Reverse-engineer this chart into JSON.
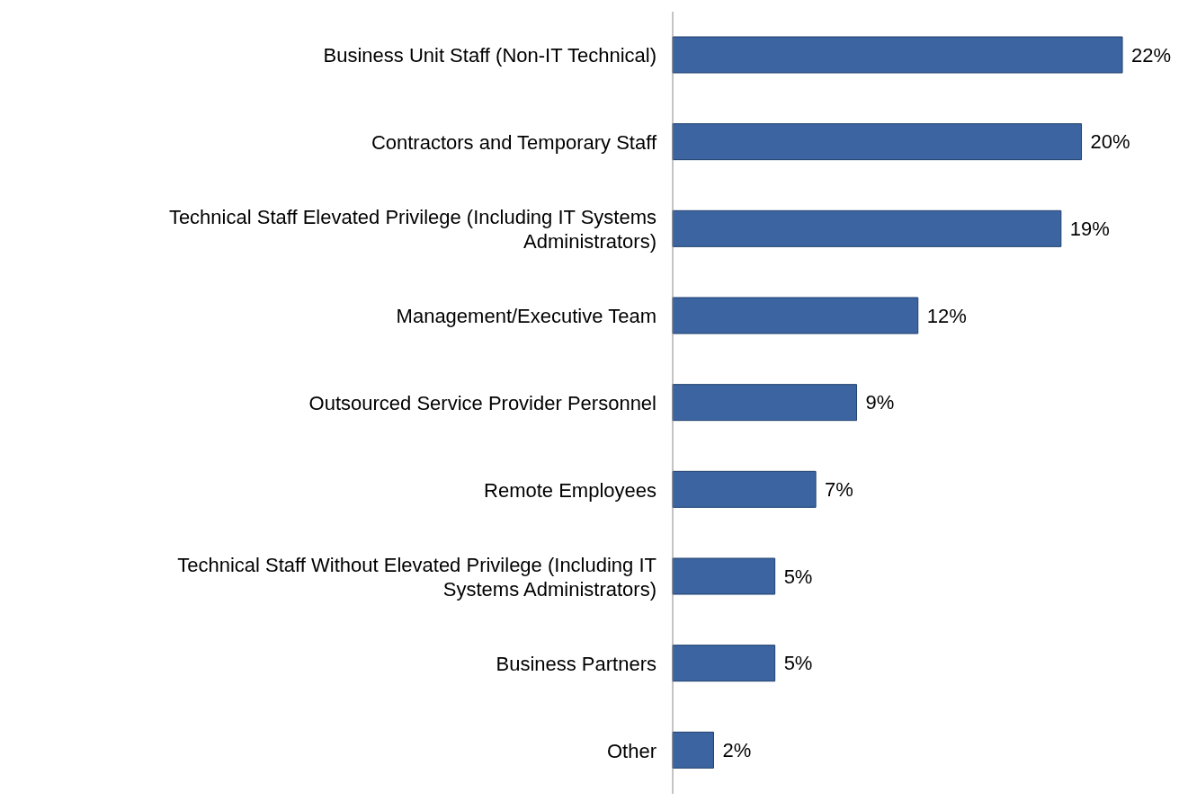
{
  "chart_data": {
    "type": "bar",
    "orientation": "horizontal",
    "categories": [
      "Business Unit Staff (Non-IT Technical)",
      "Contractors and Temporary Staff",
      "Technical Staff Elevated Privilege (Including IT Systems Administrators)",
      "Management/Executive Team",
      "Outsourced Service Provider Personnel",
      "Remote Employees",
      "Technical Staff Without Elevated Privilege (Including IT Systems Administrators)",
      "Business Partners",
      "Other"
    ],
    "values": [
      22,
      20,
      19,
      12,
      9,
      7,
      5,
      5,
      2
    ],
    "value_labels": [
      "22%",
      "20%",
      "19%",
      "12%",
      "9%",
      "7%",
      "5%",
      "5%",
      "2%"
    ],
    "color": "#3b64a0"
  }
}
